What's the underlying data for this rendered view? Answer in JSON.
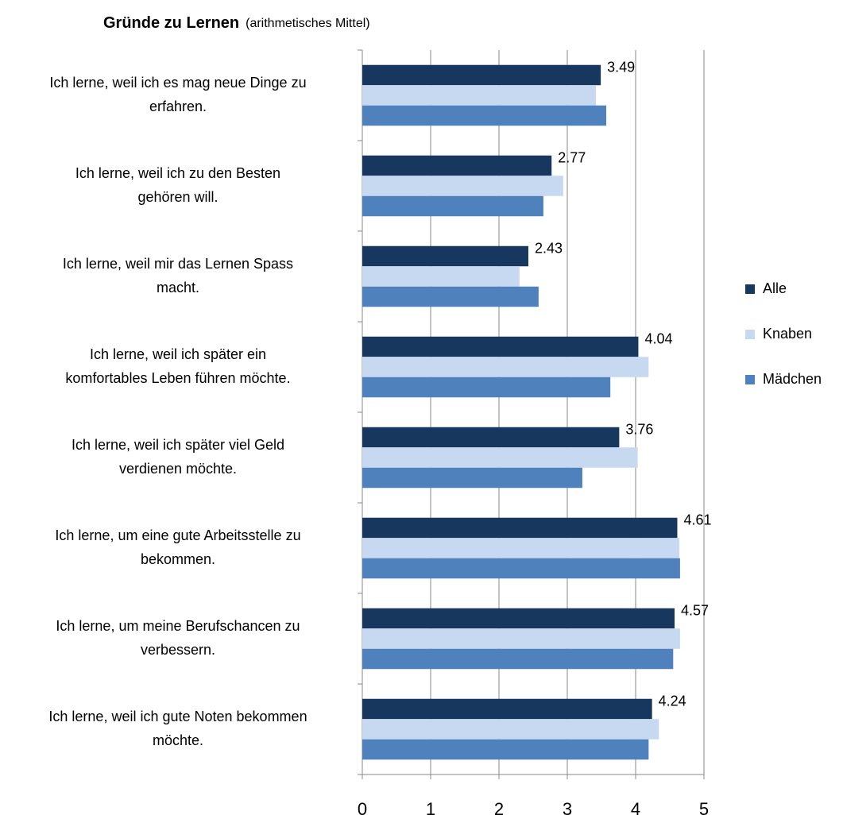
{
  "chart_data": {
    "type": "bar",
    "orientation": "horizontal",
    "title": "Gründe zu Lernen",
    "subtitle": "(arithmetisches Mittel)",
    "categories": [
      [
        "Ich lerne, weil ich es mag neue Dinge zu",
        "erfahren."
      ],
      [
        "Ich lerne, weil ich zu den Besten",
        "gehören will."
      ],
      [
        "Ich lerne, weil mir das Lernen Spass",
        "macht."
      ],
      [
        "Ich lerne, weil ich später ein",
        "komfortables Leben führen möchte."
      ],
      [
        "Ich lerne, weil ich später viel Geld",
        "verdienen möchte."
      ],
      [
        "Ich lerne, um eine gute Arbeitsstelle zu",
        "bekommen."
      ],
      [
        "Ich lerne, um meine Berufschancen zu",
        "verbessern."
      ],
      [
        "Ich lerne, weil ich gute Noten bekommen",
        "möchte."
      ]
    ],
    "series": [
      {
        "name": "Alle",
        "color": "#17375e",
        "data_labels": true,
        "values": [
          3.49,
          2.77,
          2.43,
          4.04,
          3.76,
          4.61,
          4.57,
          4.24
        ]
      },
      {
        "name": "Knaben",
        "color": "#c6d9f1",
        "data_labels": false,
        "values": [
          3.42,
          2.94,
          2.3,
          4.19,
          4.03,
          4.64,
          4.65,
          4.34
        ]
      },
      {
        "name": "Mädchen",
        "color": "#4f81bd",
        "data_labels": false,
        "values": [
          3.57,
          2.65,
          2.58,
          3.63,
          3.22,
          4.65,
          4.55,
          4.19
        ]
      }
    ],
    "xlim": [
      0,
      5
    ],
    "xticks": [
      0,
      1,
      2,
      3,
      4,
      5
    ],
    "grid": true,
    "legend": "right"
  }
}
